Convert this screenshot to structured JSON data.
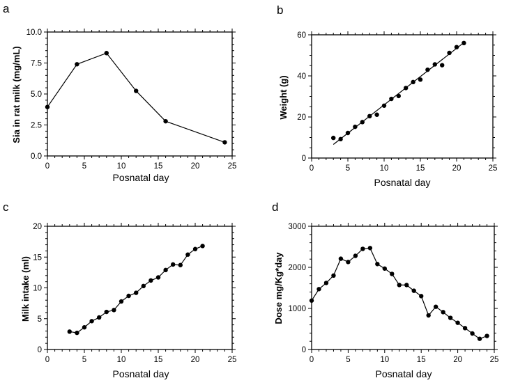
{
  "chart_data": [
    {
      "panel": "a",
      "type": "line",
      "xlabel": "Posnatal day",
      "ylabel": "Sia in rat milk (mg/mL)",
      "xlim": [
        0,
        25
      ],
      "ylim": [
        0,
        10
      ],
      "xticks": [
        0,
        5,
        10,
        15,
        20,
        25
      ],
      "yticks": [
        0.0,
        2.5,
        5.0,
        7.5,
        10.0
      ],
      "ytick_labels": [
        "0.0",
        "2.5",
        "5.0",
        "7.5",
        "10.0"
      ],
      "series": [
        {
          "name": "Sia",
          "style": "line+markers",
          "x": [
            0,
            4,
            8,
            12,
            16,
            24
          ],
          "y": [
            3.95,
            7.4,
            8.3,
            5.25,
            2.8,
            1.1
          ]
        }
      ]
    },
    {
      "panel": "b",
      "type": "scatter",
      "xlabel": "Posnatal day",
      "ylabel": "Weight (g)",
      "xlim": [
        0,
        25
      ],
      "ylim": [
        0,
        60
      ],
      "xticks": [
        0,
        5,
        10,
        15,
        20,
        25
      ],
      "yticks": [
        0,
        20,
        40,
        60
      ],
      "ytick_labels": [
        "0",
        "20",
        "40",
        "60"
      ],
      "series": [
        {
          "name": "Weight",
          "style": "markers",
          "x": [
            3,
            4,
            5,
            6,
            7,
            8,
            9,
            10,
            11,
            12,
            13,
            14,
            15,
            16,
            17,
            18,
            19,
            20,
            21
          ],
          "y": [
            9.8,
            9.2,
            12.2,
            15.2,
            17.5,
            20.4,
            21.1,
            25.5,
            28.8,
            30.2,
            34.1,
            37.0,
            38.2,
            43.0,
            45.6,
            45.2,
            51.2,
            54.0,
            56.0
          ]
        },
        {
          "name": "Fit",
          "style": "line",
          "x": [
            3,
            21
          ],
          "y": [
            6.6,
            56.2
          ]
        }
      ]
    },
    {
      "panel": "c",
      "type": "line",
      "xlabel": "Posnatal day",
      "ylabel": "Milk intake (ml)",
      "xlim": [
        0,
        25
      ],
      "ylim": [
        0,
        20
      ],
      "xticks": [
        0,
        5,
        10,
        15,
        20,
        25
      ],
      "yticks": [
        0,
        5,
        10,
        15,
        20
      ],
      "ytick_labels": [
        "0",
        "5",
        "10",
        "15",
        "20"
      ],
      "series": [
        {
          "name": "Milk intake",
          "style": "line+markers",
          "x": [
            3,
            4,
            5,
            6,
            7,
            8,
            9,
            10,
            11,
            12,
            13,
            14,
            15,
            16,
            17,
            18,
            19,
            20,
            21
          ],
          "y": [
            2.9,
            2.7,
            3.6,
            4.6,
            5.2,
            6.1,
            6.4,
            7.8,
            8.7,
            9.2,
            10.3,
            11.2,
            11.7,
            12.9,
            13.8,
            13.7,
            15.4,
            16.3,
            16.8
          ]
        }
      ]
    },
    {
      "panel": "d",
      "type": "line",
      "xlabel": "Posnatal day",
      "ylabel": "Dose mg/Kg*day",
      "xlim": [
        0,
        25
      ],
      "ylim": [
        0,
        3000
      ],
      "xticks": [
        0,
        5,
        10,
        15,
        20,
        25
      ],
      "yticks": [
        0,
        1000,
        2000,
        3000
      ],
      "ytick_labels": [
        "0",
        "1000",
        "2000",
        "3000"
      ],
      "series": [
        {
          "name": "Dose",
          "style": "line+markers",
          "x": [
            0,
            1,
            2,
            3,
            4,
            5,
            6,
            7,
            8,
            9,
            10,
            11,
            12,
            13,
            14,
            15,
            16,
            17,
            18,
            19,
            20,
            21,
            22,
            23,
            24
          ],
          "y": [
            1190,
            1470,
            1620,
            1800,
            2210,
            2130,
            2280,
            2450,
            2470,
            2080,
            1970,
            1840,
            1570,
            1570,
            1430,
            1300,
            830,
            1040,
            910,
            770,
            650,
            520,
            390,
            260,
            330
          ]
        }
      ]
    }
  ]
}
